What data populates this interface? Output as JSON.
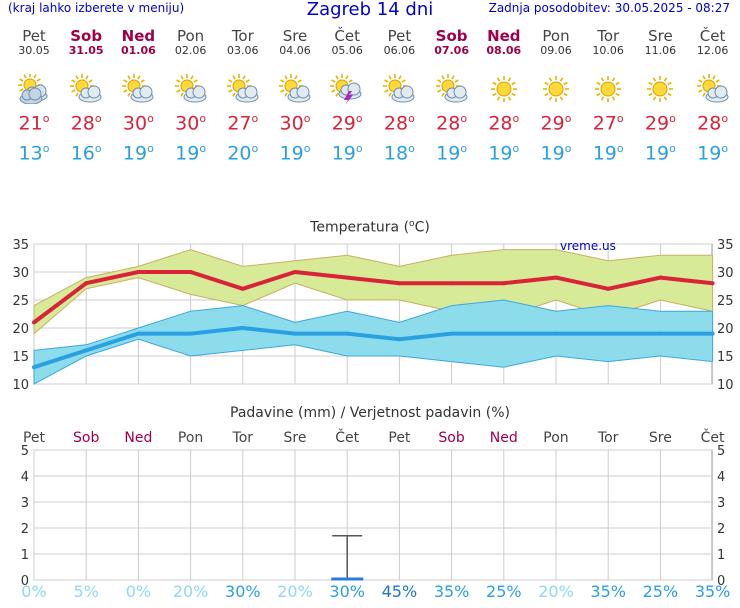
{
  "header": {
    "hint": "(kraj lahko izberete v meniju)",
    "title": "Zagreb 14 dni",
    "updated": "Zadnja posodobitev: 30.05.2025 - 08:27"
  },
  "colors": {
    "max": "#d9233a",
    "min": "#2aa0e0",
    "weekend": "#a00048",
    "maxband": "#d6ea98",
    "minband": "#8ddcec"
  },
  "days": [
    {
      "name": "Pet",
      "date": "30.05",
      "weekend": false,
      "icon": "partly-cloudy-icon",
      "max": "21",
      "min": "13",
      "tmax": 21,
      "tmin": 13,
      "maxhi": 24,
      "maxlo": 19,
      "minhi": 16,
      "minlo": 10,
      "prob": "0%"
    },
    {
      "name": "Sob",
      "date": "31.05",
      "weekend": true,
      "icon": "sun-cloud-icon",
      "max": "28",
      "min": "16",
      "tmax": 28,
      "tmin": 16,
      "maxhi": 29,
      "maxlo": 27,
      "minhi": 17,
      "minlo": 15,
      "prob": "5%"
    },
    {
      "name": "Ned",
      "date": "01.06",
      "weekend": true,
      "icon": "sun-cloud-icon",
      "max": "30",
      "min": "19",
      "tmax": 30,
      "tmin": 19,
      "maxhi": 31,
      "maxlo": 29,
      "minhi": 20,
      "minlo": 18,
      "prob": "0%"
    },
    {
      "name": "Pon",
      "date": "02.06",
      "weekend": false,
      "icon": "sun-cloud-icon",
      "max": "30",
      "min": "19",
      "tmax": 30,
      "tmin": 19,
      "maxhi": 34,
      "maxlo": 26,
      "minhi": 23,
      "minlo": 15,
      "prob": "20%"
    },
    {
      "name": "Tor",
      "date": "03.06",
      "weekend": false,
      "icon": "sun-cloud-icon",
      "max": "27",
      "min": "20",
      "tmax": 27,
      "tmin": 20,
      "maxhi": 31,
      "maxlo": 24,
      "minhi": 24,
      "minlo": 16,
      "prob": "30%"
    },
    {
      "name": "Sre",
      "date": "04.06",
      "weekend": false,
      "icon": "sun-cloud-icon",
      "max": "30",
      "min": "19",
      "tmax": 30,
      "tmin": 19,
      "maxhi": 32,
      "maxlo": 28,
      "minhi": 21,
      "minlo": 17,
      "prob": "20%"
    },
    {
      "name": "Čet",
      "date": "05.06",
      "weekend": false,
      "icon": "thunder-cloud-icon",
      "max": "29",
      "min": "19",
      "tmax": 29,
      "tmin": 19,
      "maxhi": 33,
      "maxlo": 25,
      "minhi": 23,
      "minlo": 15,
      "prob": "30%"
    },
    {
      "name": "Pet",
      "date": "06.06",
      "weekend": false,
      "icon": "sun-cloud-icon",
      "max": "28",
      "min": "18",
      "tmax": 28,
      "tmin": 18,
      "maxhi": 31,
      "maxlo": 25,
      "minhi": 21,
      "minlo": 15,
      "prob": "45%"
    },
    {
      "name": "Sob",
      "date": "07.06",
      "weekend": true,
      "icon": "sun-cloud-icon",
      "max": "28",
      "min": "19",
      "tmax": 28,
      "tmin": 19,
      "maxhi": 33,
      "maxlo": 23,
      "minhi": 24,
      "minlo": 14,
      "prob": "35%"
    },
    {
      "name": "Ned",
      "date": "08.06",
      "weekend": true,
      "icon": "sun-icon",
      "max": "28",
      "min": "19",
      "tmax": 28,
      "tmin": 19,
      "maxhi": 34,
      "maxlo": 22,
      "minhi": 25,
      "minlo": 13,
      "prob": "25%"
    },
    {
      "name": "Pon",
      "date": "09.06",
      "weekend": false,
      "icon": "sun-icon",
      "max": "29",
      "min": "19",
      "tmax": 29,
      "tmin": 19,
      "maxhi": 34,
      "maxlo": 25,
      "minhi": 23,
      "minlo": 15,
      "prob": "20%"
    },
    {
      "name": "Tor",
      "date": "10.06",
      "weekend": false,
      "icon": "sun-icon",
      "max": "27",
      "min": "19",
      "tmax": 27,
      "tmin": 19,
      "maxhi": 32,
      "maxlo": 22,
      "minhi": 24,
      "minlo": 14,
      "prob": "35%"
    },
    {
      "name": "Sre",
      "date": "11.06",
      "weekend": false,
      "icon": "sun-icon",
      "max": "29",
      "min": "19",
      "tmax": 29,
      "tmin": 19,
      "maxhi": 33,
      "maxlo": 25,
      "minhi": 23,
      "minlo": 15,
      "prob": "25%"
    },
    {
      "name": "Čet",
      "date": "12.06",
      "weekend": false,
      "icon": "sun-cloud-icon",
      "max": "28",
      "min": "19",
      "tmax": 28,
      "tmin": 19,
      "maxhi": 33,
      "maxlo": 23,
      "minhi": 23,
      "minlo": 14,
      "prob": "35%"
    }
  ],
  "temp_chart": {
    "title_main": "Temperatura (",
    "title_unit": "o",
    "title_end": "C)",
    "credit": "vreme.us",
    "yticks": [
      "35",
      "30",
      "25",
      "20",
      "15",
      "10"
    ]
  },
  "precip_chart": {
    "title": "Padavine (mm) / Verjetnost padavin (%)",
    "yticks": [
      "5",
      "4",
      "3",
      "2",
      "1",
      "0"
    ],
    "bar_day": 6,
    "bar_value": 0.0,
    "bar_hi": 1.7
  },
  "chart_data": [
    {
      "type": "line",
      "title": "Temperatura (°C)",
      "categories": [
        "Pet",
        "Sob",
        "Ned",
        "Pon",
        "Tor",
        "Sre",
        "Čet",
        "Pet",
        "Sob",
        "Ned",
        "Pon",
        "Tor",
        "Sre",
        "Čet"
      ],
      "ylim": [
        10,
        35
      ],
      "series": [
        {
          "values": [
            21,
            28,
            30,
            30,
            27,
            30,
            29,
            28,
            28,
            28,
            29,
            27,
            29,
            28
          ]
        },
        {
          "values": [
            13,
            16,
            19,
            19,
            20,
            19,
            19,
            18,
            19,
            19,
            19,
            19,
            19,
            19
          ]
        }
      ]
    },
    {
      "type": "bar",
      "title": "Padavine (mm) / Verjetnost padavin (%)",
      "categories": [
        "Pet",
        "Sob",
        "Ned",
        "Pon",
        "Tor",
        "Sre",
        "Čet",
        "Pet",
        "Sob",
        "Ned",
        "Pon",
        "Tor",
        "Sre",
        "Čet"
      ],
      "ylim": [
        0,
        5
      ],
      "values": [
        0,
        0,
        0,
        0,
        0,
        0,
        0,
        0,
        0,
        0,
        0,
        0,
        0,
        0
      ],
      "probability": [
        "0%",
        "5%",
        "0%",
        "20%",
        "30%",
        "20%",
        "30%",
        "45%",
        "35%",
        "25%",
        "20%",
        "35%",
        "25%",
        "35%"
      ]
    }
  ]
}
